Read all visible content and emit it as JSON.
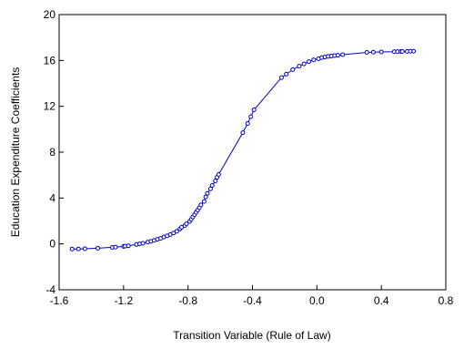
{
  "chart_data": {
    "type": "line",
    "title": "",
    "xlabel": "Transition Variable (Rule of Law)",
    "ylabel": "Education Expenditure Coefficients",
    "xlim": [
      -1.6,
      0.8
    ],
    "ylim": [
      -4,
      20
    ],
    "xticks": [
      -1.6,
      -1.2,
      -0.8,
      -0.4,
      0.0,
      0.4,
      0.8
    ],
    "xtick_labels": [
      "-1.6",
      "-1.2",
      "-0.8",
      "-0.4",
      "0.0",
      "0.4",
      "0.8"
    ],
    "yticks": [
      -4,
      0,
      4,
      8,
      12,
      16,
      20
    ],
    "ytick_labels": [
      "-4",
      "0",
      "4",
      "8",
      "12",
      "16",
      "20"
    ],
    "grid": false,
    "series": [
      {
        "color": "#0000cc",
        "marker": "open-circle",
        "points": [
          [
            -1.52,
            -0.45
          ],
          [
            -1.48,
            -0.44
          ],
          [
            -1.44,
            -0.42
          ],
          [
            -1.36,
            -0.38
          ],
          [
            -1.27,
            -0.3
          ],
          [
            -1.25,
            -0.28
          ],
          [
            -1.2,
            -0.22
          ],
          [
            -1.19,
            -0.2
          ],
          [
            -1.17,
            -0.17
          ],
          [
            -1.12,
            -0.05
          ],
          [
            -1.1,
            0.0
          ],
          [
            -1.08,
            0.05
          ],
          [
            -1.05,
            0.15
          ],
          [
            -1.03,
            0.22
          ],
          [
            -1.01,
            0.3
          ],
          [
            -0.99,
            0.4
          ],
          [
            -0.97,
            0.48
          ],
          [
            -0.95,
            0.6
          ],
          [
            -0.93,
            0.7
          ],
          [
            -0.91,
            0.82
          ],
          [
            -0.89,
            0.95
          ],
          [
            -0.87,
            1.1
          ],
          [
            -0.85,
            1.3
          ],
          [
            -0.84,
            1.45
          ],
          [
            -0.82,
            1.6
          ],
          [
            -0.81,
            1.75
          ],
          [
            -0.79,
            1.95
          ],
          [
            -0.78,
            2.15
          ],
          [
            -0.77,
            2.35
          ],
          [
            -0.76,
            2.55
          ],
          [
            -0.75,
            2.75
          ],
          [
            -0.74,
            2.95
          ],
          [
            -0.73,
            3.15
          ],
          [
            -0.72,
            3.4
          ],
          [
            -0.7,
            3.7
          ],
          [
            -0.69,
            4.1
          ],
          [
            -0.68,
            4.4
          ],
          [
            -0.66,
            4.8
          ],
          [
            -0.65,
            5.1
          ],
          [
            -0.63,
            5.5
          ],
          [
            -0.62,
            5.8
          ],
          [
            -0.61,
            6.05
          ],
          [
            -0.46,
            9.7
          ],
          [
            -0.43,
            10.5
          ],
          [
            -0.41,
            11.1
          ],
          [
            -0.39,
            11.7
          ],
          [
            -0.22,
            14.5
          ],
          [
            -0.19,
            14.8
          ],
          [
            -0.15,
            15.2
          ],
          [
            -0.11,
            15.5
          ],
          [
            -0.08,
            15.7
          ],
          [
            -0.05,
            15.9
          ],
          [
            -0.02,
            16.05
          ],
          [
            0.01,
            16.15
          ],
          [
            0.03,
            16.25
          ],
          [
            0.05,
            16.3
          ],
          [
            0.07,
            16.35
          ],
          [
            0.09,
            16.38
          ],
          [
            0.11,
            16.42
          ],
          [
            0.13,
            16.45
          ],
          [
            0.16,
            16.5
          ],
          [
            0.31,
            16.7
          ],
          [
            0.35,
            16.72
          ],
          [
            0.4,
            16.74
          ],
          [
            0.48,
            16.76
          ],
          [
            0.5,
            16.77
          ],
          [
            0.52,
            16.78
          ],
          [
            0.53,
            16.78
          ],
          [
            0.56,
            16.79
          ],
          [
            0.58,
            16.8
          ],
          [
            0.6,
            16.81
          ]
        ]
      }
    ]
  }
}
